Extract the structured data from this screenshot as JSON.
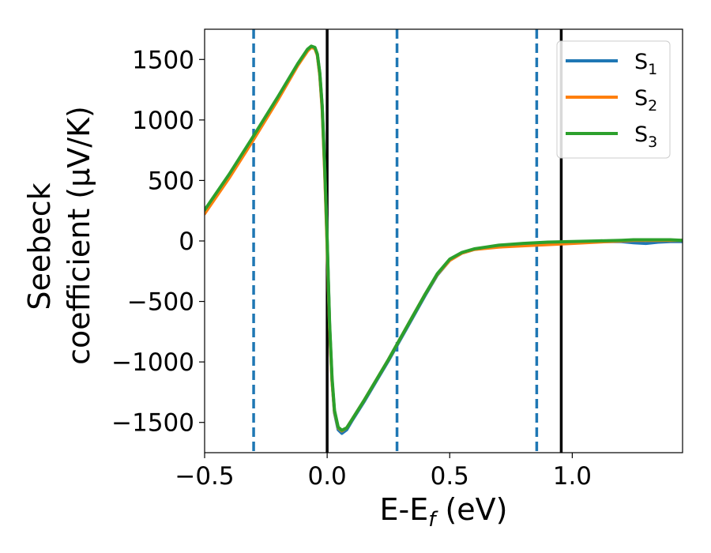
{
  "chart_data": {
    "type": "line",
    "title": "",
    "xlabel": "E-E_f (eV)",
    "xlabel_parts": {
      "pre": "E-E",
      "sub": "f",
      "post": " (eV)"
    },
    "ylabel_line1": "Seebeck",
    "ylabel_line2": "coefficient  (μV/K)",
    "xlim": [
      -0.5,
      1.45
    ],
    "ylim": [
      -1750,
      1750
    ],
    "xticks": [
      -0.5,
      0.0,
      0.5,
      1.0
    ],
    "xtick_labels": [
      "−0.5",
      "0.0",
      "0.5",
      "1.0"
    ],
    "yticks": [
      -1500,
      -1000,
      -500,
      0,
      500,
      1000,
      1500
    ],
    "ytick_labels": [
      "−1500",
      "−1000",
      "−500",
      "0",
      "500",
      "1000",
      "1500"
    ],
    "grid": false,
    "legend_position": "top-right",
    "vlines_dashed": [
      -0.3,
      0.285,
      0.855
    ],
    "vlines_solid": [
      0.0,
      0.955
    ],
    "series": [
      {
        "name": "S1",
        "label_main": "S",
        "label_sub": "1",
        "color": "#1f77b4",
        "x": [
          -0.5,
          -0.4,
          -0.3,
          -0.2,
          -0.12,
          -0.08,
          -0.065,
          -0.05,
          -0.04,
          -0.03,
          -0.02,
          -0.01,
          0.0,
          0.01,
          0.02,
          0.03,
          0.045,
          0.06,
          0.08,
          0.1,
          0.15,
          0.2,
          0.25,
          0.3,
          0.35,
          0.4,
          0.45,
          0.5,
          0.55,
          0.6,
          0.65,
          0.7,
          0.8,
          0.9,
          1.0,
          1.1,
          1.2,
          1.25,
          1.3,
          1.35,
          1.4,
          1.45
        ],
        "y": [
          250,
          540,
          860,
          1190,
          1460,
          1580,
          1605,
          1595,
          1540,
          1380,
          1100,
          600,
          0,
          -700,
          -1150,
          -1420,
          -1560,
          -1590,
          -1560,
          -1490,
          -1330,
          -1160,
          -990,
          -810,
          -630,
          -450,
          -280,
          -160,
          -100,
          -70,
          -55,
          -40,
          -25,
          -15,
          -10,
          -5,
          -5,
          -15,
          -20,
          -10,
          -5,
          -5
        ]
      },
      {
        "name": "S2",
        "label_main": "S",
        "label_sub": "2",
        "color": "#ff7f0e",
        "x": [
          -0.5,
          -0.4,
          -0.3,
          -0.2,
          -0.12,
          -0.08,
          -0.065,
          -0.05,
          -0.04,
          -0.03,
          -0.02,
          -0.01,
          0.0,
          0.01,
          0.02,
          0.03,
          0.045,
          0.06,
          0.08,
          0.1,
          0.15,
          0.2,
          0.25,
          0.3,
          0.35,
          0.4,
          0.45,
          0.5,
          0.55,
          0.6,
          0.65,
          0.7,
          0.8,
          0.9,
          1.0,
          1.1,
          1.2,
          1.25,
          1.3,
          1.35,
          1.4,
          1.45
        ],
        "y": [
          225,
          520,
          840,
          1170,
          1450,
          1570,
          1600,
          1590,
          1535,
          1370,
          1080,
          570,
          -40,
          -720,
          -1160,
          -1410,
          -1545,
          -1570,
          -1545,
          -1480,
          -1320,
          -1150,
          -980,
          -800,
          -620,
          -440,
          -275,
          -160,
          -100,
          -70,
          -60,
          -50,
          -40,
          -30,
          -20,
          -10,
          0,
          5,
          5,
          5,
          5,
          5
        ]
      },
      {
        "name": "S3",
        "label_main": "S",
        "label_sub": "3",
        "color": "#2ca02c",
        "x": [
          -0.5,
          -0.4,
          -0.3,
          -0.2,
          -0.12,
          -0.08,
          -0.065,
          -0.05,
          -0.04,
          -0.03,
          -0.02,
          -0.01,
          0.0,
          0.01,
          0.02,
          0.03,
          0.045,
          0.06,
          0.08,
          0.1,
          0.15,
          0.2,
          0.25,
          0.3,
          0.35,
          0.4,
          0.45,
          0.5,
          0.55,
          0.6,
          0.65,
          0.7,
          0.8,
          0.9,
          1.0,
          1.1,
          1.2,
          1.25,
          1.3,
          1.35,
          1.4,
          1.45
        ],
        "y": [
          255,
          550,
          870,
          1195,
          1465,
          1585,
          1610,
          1600,
          1545,
          1390,
          1110,
          620,
          20,
          -680,
          -1130,
          -1400,
          -1540,
          -1565,
          -1545,
          -1480,
          -1320,
          -1150,
          -980,
          -800,
          -620,
          -440,
          -270,
          -150,
          -95,
          -65,
          -50,
          -35,
          -20,
          -10,
          -5,
          0,
          5,
          10,
          10,
          10,
          10,
          5
        ]
      }
    ]
  }
}
